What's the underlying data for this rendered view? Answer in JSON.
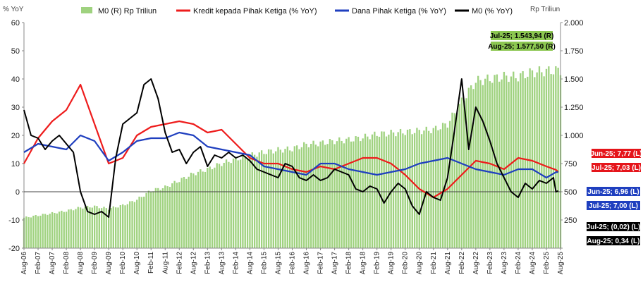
{
  "chart_data": {
    "type": "line",
    "y_left_label": "% YoY",
    "y_right_label": "Rp Triliun",
    "y_left_range": [
      -20,
      60
    ],
    "y_right_range": [
      0,
      2000
    ],
    "y_left_ticks": [
      "-20",
      "-10",
      "0",
      "10",
      "20",
      "30",
      "40",
      "50",
      "60"
    ],
    "y_right_ticks": [
      "",
      "250",
      "500",
      "750",
      "1.000",
      "1.250",
      "1.500",
      "1.750",
      "2.000"
    ],
    "x_ticks": [
      "Aug-06",
      "Feb-07",
      "Aug-07",
      "Feb-08",
      "Aug-08",
      "Feb-09",
      "Aug-09",
      "Feb-10",
      "Aug-10",
      "Feb-11",
      "Aug-11",
      "Feb-12",
      "Aug-12",
      "Feb-13",
      "Aug-13",
      "Feb-14",
      "Aug-14",
      "Feb-15",
      "Aug-15",
      "Feb-16",
      "Aug-16",
      "Feb-17",
      "Aug-17",
      "Feb-18",
      "Aug-18",
      "Feb-19",
      "Aug-19",
      "Feb-20",
      "Aug-20",
      "Feb-21",
      "Aug-21",
      "Feb-22",
      "Aug-22",
      "Feb-23",
      "Aug-23",
      "Feb-24",
      "Aug-24",
      "Feb-25",
      "Aug-25"
    ],
    "grid": false,
    "legend_position": "top",
    "series": [
      {
        "name": "M0 (R) Rp Triliun",
        "type": "bar",
        "axis": "right",
        "color": "#9fd27f",
        "x": [
          2006.58,
          2007.08,
          2007.58,
          2008.08,
          2008.58,
          2009.08,
          2009.58,
          2010.08,
          2010.58,
          2011.08,
          2011.58,
          2012.08,
          2012.58,
          2013.08,
          2013.58,
          2014.08,
          2014.58,
          2015.08,
          2015.58,
          2016.08,
          2016.58,
          2017.08,
          2017.58,
          2018.08,
          2018.58,
          2019.08,
          2019.58,
          2020.08,
          2020.58,
          2021.08,
          2021.58,
          2022.08,
          2022.58,
          2023.08,
          2023.58,
          2024.08,
          2024.58,
          2025.08,
          2025.58
        ],
        "values": [
          270,
          290,
          310,
          330,
          360,
          370,
          350,
          380,
          430,
          510,
          540,
          600,
          660,
          700,
          750,
          790,
          820,
          850,
          870,
          880,
          920,
          930,
          950,
          960,
          980,
          1010,
          1020,
          1030,
          1040,
          1050,
          1100,
          1300,
          1480,
          1500,
          1520,
          1520,
          1560,
          1570,
          1577.5
        ]
      },
      {
        "name": "Kredit kepada Pihak Ketiga (% YoY)",
        "type": "line",
        "axis": "left",
        "color": "#ee1c1c",
        "x": [
          2006.58,
          2007.08,
          2007.58,
          2008.08,
          2008.58,
          2009.08,
          2009.58,
          2010.08,
          2010.58,
          2011.08,
          2011.58,
          2012.08,
          2012.58,
          2013.08,
          2013.58,
          2014.08,
          2014.58,
          2015.08,
          2015.58,
          2016.08,
          2016.58,
          2017.08,
          2017.58,
          2018.08,
          2018.58,
          2019.08,
          2019.58,
          2020.08,
          2020.58,
          2021.08,
          2021.58,
          2022.08,
          2022.58,
          2023.08,
          2023.58,
          2024.08,
          2024.58,
          2025.08,
          2025.42,
          2025.5
        ],
        "values": [
          10,
          19,
          25,
          29,
          38,
          24,
          10,
          12,
          20,
          23,
          24,
          25,
          24,
          21,
          22,
          17,
          12,
          10,
          10,
          8,
          7,
          9,
          8,
          10,
          12,
          12,
          10,
          6,
          1,
          -2,
          1,
          6,
          11,
          10,
          8,
          12,
          11,
          9,
          7.77,
          7.03
        ]
      },
      {
        "name": "Dana Pihak Ketiga (% YoY)",
        "type": "line",
        "axis": "left",
        "color": "#1f3fbf",
        "x": [
          2006.58,
          2007.08,
          2007.58,
          2008.08,
          2008.58,
          2009.08,
          2009.58,
          2010.08,
          2010.58,
          2011.08,
          2011.58,
          2012.08,
          2012.58,
          2013.08,
          2013.58,
          2014.08,
          2014.58,
          2015.08,
          2015.58,
          2016.08,
          2016.58,
          2017.08,
          2017.58,
          2018.08,
          2018.58,
          2019.08,
          2019.58,
          2020.08,
          2020.58,
          2021.08,
          2021.58,
          2022.08,
          2022.58,
          2023.08,
          2023.58,
          2024.08,
          2024.58,
          2025.08,
          2025.42,
          2025.5
        ],
        "values": [
          14,
          17,
          16,
          15,
          20,
          18,
          11,
          14,
          18,
          19,
          19,
          21,
          20,
          16,
          15,
          14,
          13,
          9,
          8,
          7,
          6,
          10,
          10,
          8,
          7,
          6,
          7,
          8,
          10,
          11,
          12,
          10,
          8,
          7,
          6,
          8,
          8,
          5,
          6.96,
          7.0
        ]
      },
      {
        "name": "M0 (% YoY)",
        "type": "line",
        "axis": "left",
        "color": "#000000",
        "x": [
          2006.58,
          2006.83,
          2007.08,
          2007.33,
          2007.58,
          2007.83,
          2008.08,
          2008.33,
          2008.58,
          2008.83,
          2009.08,
          2009.33,
          2009.58,
          2009.83,
          2010.08,
          2010.33,
          2010.58,
          2010.83,
          2011.08,
          2011.33,
          2011.58,
          2011.83,
          2012.08,
          2012.33,
          2012.58,
          2012.83,
          2013.08,
          2013.33,
          2013.58,
          2013.83,
          2014.08,
          2014.33,
          2014.58,
          2014.83,
          2015.08,
          2015.33,
          2015.58,
          2015.83,
          2016.08,
          2016.33,
          2016.58,
          2016.83,
          2017.08,
          2017.33,
          2017.58,
          2017.83,
          2018.08,
          2018.33,
          2018.58,
          2018.83,
          2019.08,
          2019.33,
          2019.58,
          2019.83,
          2020.08,
          2020.33,
          2020.58,
          2020.83,
          2021.08,
          2021.33,
          2021.58,
          2021.83,
          2022.08,
          2022.33,
          2022.58,
          2022.83,
          2023.08,
          2023.33,
          2023.58,
          2023.83,
          2024.08,
          2024.33,
          2024.58,
          2024.83,
          2025.08,
          2025.33,
          2025.42,
          2025.5
        ],
        "values": [
          29,
          20,
          19,
          15,
          18,
          20,
          17,
          14,
          0,
          -7,
          -8,
          -7,
          -9,
          12,
          24,
          26,
          28,
          38,
          40,
          33,
          21,
          14,
          15,
          10,
          14,
          16,
          9,
          13,
          12,
          14,
          12,
          13,
          11,
          8,
          7,
          6,
          5,
          10,
          9,
          5,
          4,
          6,
          4,
          5,
          8,
          7,
          6,
          1,
          0,
          2,
          1,
          -4,
          0,
          3,
          1,
          -5,
          -8,
          0,
          -2,
          -3,
          5,
          22,
          40,
          15,
          30,
          25,
          18,
          10,
          5,
          0,
          -2,
          3,
          1,
          4,
          3,
          5,
          -0.02,
          0.34
        ]
      }
    ],
    "annotations": [
      {
        "text": "Jul-25; 1.543,94 (R)",
        "bg": "#8cc751",
        "fg": "#000000"
      },
      {
        "text": "Aug-25; 1.577,50 (R)",
        "bg": "#8cc751",
        "fg": "#000000"
      },
      {
        "text": "Jun-25; 7,77 (L)",
        "bg": "#e5151b",
        "fg": "#ffffff"
      },
      {
        "text": "Jul-25; 7,03 (L)",
        "bg": "#e5151b",
        "fg": "#ffffff"
      },
      {
        "text": "Jun-25; 6,96 (L)",
        "bg": "#1f3fbf",
        "fg": "#ffffff"
      },
      {
        "text": "Jul-25; 7,00 (L)",
        "bg": "#1f3fbf",
        "fg": "#ffffff"
      },
      {
        "text": "Jul-25; (0,02) (L)",
        "bg": "#000000",
        "fg": "#ffffff"
      },
      {
        "text": "Aug-25; 0,34 (L)",
        "bg": "#000000",
        "fg": "#ffffff"
      }
    ]
  }
}
